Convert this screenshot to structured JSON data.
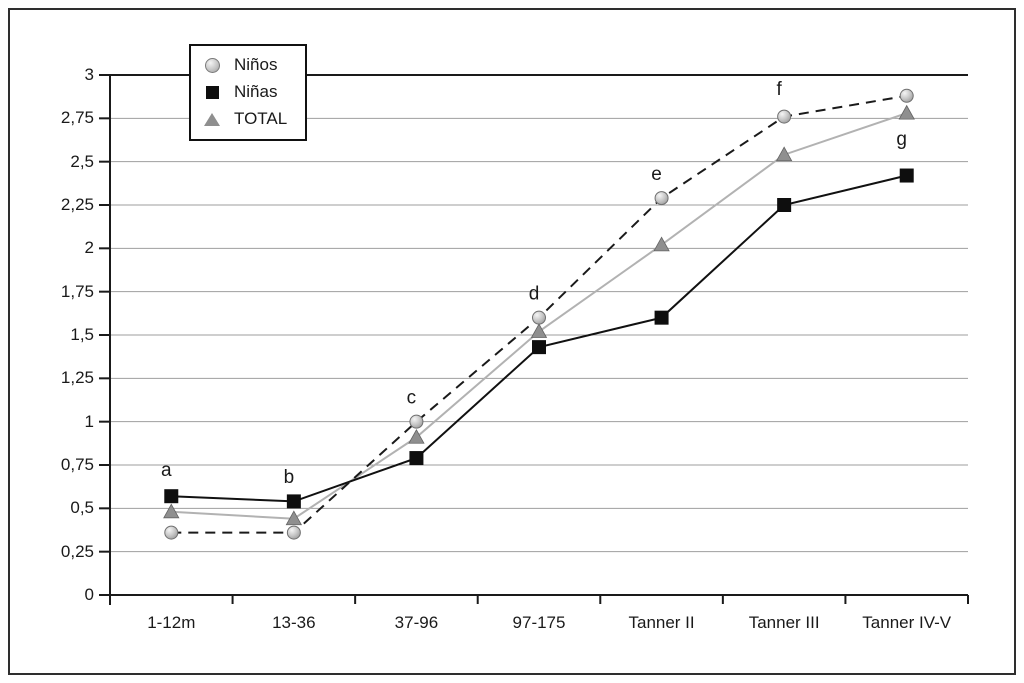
{
  "chart_data": {
    "type": "line",
    "title": "",
    "xlabel": "",
    "ylabel": "",
    "categories": [
      "1-12m",
      "13-36",
      "37-96",
      "97-175",
      "Tanner II",
      "Tanner III",
      "Tanner IV-V"
    ],
    "series": [
      {
        "name": "Niños",
        "marker": "circle",
        "line_style": "dashed",
        "line_color": "#1a1a1a",
        "marker_color": "#c4c4c4",
        "values": [
          0.36,
          0.36,
          1.0,
          1.6,
          2.29,
          2.76,
          2.88
        ]
      },
      {
        "name": "Niñas",
        "marker": "square",
        "line_style": "solid",
        "line_color": "#111111",
        "marker_color": "#0e0e0e",
        "values": [
          0.57,
          0.54,
          0.79,
          1.43,
          1.6,
          2.25,
          2.42
        ]
      },
      {
        "name": "TOTAL",
        "marker": "triangle",
        "line_style": "solid",
        "line_color": "#b2b2b2",
        "marker_color": "#8f8f8f",
        "values": [
          0.48,
          0.44,
          0.91,
          1.52,
          2.02,
          2.54,
          2.78
        ]
      }
    ],
    "ylim": [
      0,
      3
    ],
    "y_tick_values": [
      0,
      0.25,
      0.5,
      0.75,
      1,
      1.25,
      1.5,
      1.75,
      2,
      2.25,
      2.5,
      2.75,
      3
    ],
    "y_tick_labels": [
      "0",
      "0,25",
      "0,5",
      "0,75",
      "1",
      "1,25",
      "1,5",
      "1,75",
      "2",
      "2,25",
      "2,5",
      "2,75",
      "3"
    ],
    "grid": true,
    "legend_position": "top-left-inside",
    "annotations": [
      {
        "text": "a",
        "category_index": 0,
        "y": 0.72
      },
      {
        "text": "b",
        "category_index": 1,
        "y": 0.68
      },
      {
        "text": "c",
        "category_index": 2,
        "y": 1.14
      },
      {
        "text": "d",
        "category_index": 3,
        "y": 1.74
      },
      {
        "text": "e",
        "category_index": 4,
        "y": 2.43
      },
      {
        "text": "f",
        "category_index": 5,
        "y": 2.92
      },
      {
        "text": "g",
        "category_index": 6,
        "y": 2.63
      }
    ],
    "colors": {
      "grid_line": "#9e9e9e",
      "axis_line": "#1a1a1a",
      "frame_border": "#2e2e2e"
    }
  }
}
